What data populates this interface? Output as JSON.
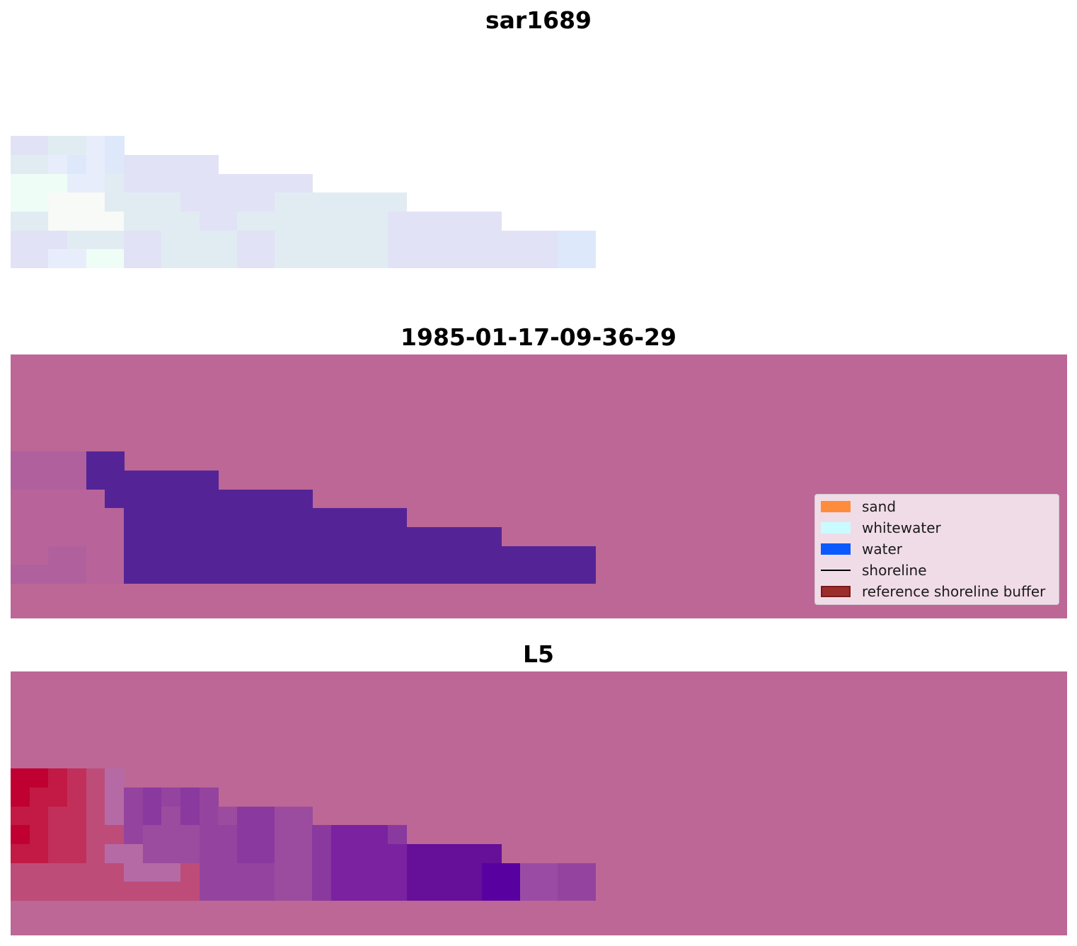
{
  "panels": [
    {
      "title": "sar1689",
      "colormap": "sar",
      "background": "#ffffff",
      "rows": [
        [
          0,
          0,
          0,
          0,
          0,
          0,
          0,
          0,
          0,
          0,
          0,
          0,
          0,
          0,
          0,
          0,
          0,
          0,
          0,
          0,
          0,
          0,
          0,
          0,
          0,
          0,
          0,
          0,
          0,
          0,
          0,
          0
        ],
        [
          0,
          0,
          0,
          0,
          0,
          0,
          0,
          0,
          0,
          0,
          0,
          0,
          0,
          0,
          0,
          0,
          0,
          0,
          0,
          0,
          0,
          0,
          0,
          0,
          0,
          0,
          0,
          0,
          0,
          0,
          0,
          0
        ],
        [
          0,
          0,
          0,
          0,
          0,
          0,
          0,
          0,
          0,
          0,
          0,
          0,
          0,
          0,
          0,
          0,
          0,
          0,
          0,
          0,
          0,
          0,
          0,
          0,
          0,
          0,
          0,
          0,
          0,
          0,
          0,
          0
        ],
        [
          0,
          0,
          0,
          0,
          0,
          0,
          0,
          0,
          0,
          0,
          0,
          0,
          0,
          0,
          0,
          0,
          0,
          0,
          0,
          0,
          0,
          0,
          0,
          0,
          0,
          0,
          0,
          0,
          0,
          0,
          0,
          0
        ],
        [
          0,
          0,
          0,
          0,
          0,
          0,
          0,
          0,
          0,
          0,
          0,
          0,
          0,
          0,
          0,
          0,
          0,
          0,
          0,
          0,
          0,
          0,
          0,
          0,
          0,
          0,
          0,
          0,
          0,
          0,
          0,
          0
        ],
        [
          1,
          1,
          2,
          2,
          3,
          4,
          0,
          0,
          0,
          0,
          0,
          0,
          0,
          0,
          0,
          0,
          0,
          0,
          0,
          0,
          0,
          0,
          0,
          0,
          0,
          0,
          0,
          0,
          0,
          0,
          0,
          0
        ],
        [
          2,
          2,
          3,
          4,
          3,
          4,
          1,
          1,
          1,
          1,
          1,
          0,
          0,
          0,
          0,
          0,
          0,
          0,
          0,
          0,
          0,
          0,
          0,
          0,
          0,
          0,
          0,
          0,
          0,
          0,
          0,
          0
        ],
        [
          5,
          5,
          5,
          3,
          3,
          2,
          1,
          1,
          1,
          1,
          1,
          1,
          1,
          1,
          1,
          1,
          0,
          0,
          0,
          0,
          0,
          0,
          0,
          0,
          0,
          0,
          0,
          0,
          0,
          0,
          0,
          0
        ],
        [
          5,
          5,
          6,
          6,
          6,
          2,
          2,
          2,
          2,
          1,
          1,
          1,
          1,
          1,
          2,
          2,
          2,
          2,
          2,
          2,
          2,
          0,
          0,
          0,
          0,
          0,
          0,
          0,
          0,
          0,
          0,
          0
        ],
        [
          2,
          2,
          6,
          6,
          6,
          6,
          2,
          2,
          2,
          2,
          1,
          1,
          2,
          2,
          2,
          2,
          2,
          2,
          2,
          2,
          1,
          1,
          1,
          1,
          1,
          1,
          0,
          0,
          0,
          0,
          0,
          0
        ],
        [
          1,
          1,
          1,
          2,
          2,
          2,
          1,
          1,
          2,
          2,
          2,
          2,
          1,
          1,
          2,
          2,
          2,
          2,
          2,
          2,
          1,
          1,
          1,
          1,
          1,
          1,
          1,
          1,
          1,
          4,
          4,
          0
        ],
        [
          1,
          1,
          3,
          3,
          5,
          5,
          1,
          1,
          2,
          2,
          2,
          2,
          1,
          1,
          2,
          2,
          2,
          2,
          2,
          2,
          1,
          1,
          1,
          1,
          1,
          1,
          1,
          1,
          1,
          4,
          4,
          0
        ],
        [
          0,
          0,
          0,
          0,
          0,
          0,
          0,
          0,
          0,
          0,
          0,
          0,
          0,
          0,
          0,
          0,
          0,
          0,
          0,
          0,
          0,
          0,
          0,
          0,
          0,
          0,
          0,
          0,
          0,
          0,
          0,
          0
        ],
        [
          0,
          0,
          0,
          0,
          0,
          0,
          0,
          0,
          0,
          0,
          0,
          0,
          0,
          0,
          0,
          0,
          0,
          0,
          0,
          0,
          0,
          0,
          0,
          0,
          0,
          0,
          0,
          0,
          0,
          0,
          0,
          0
        ]
      ],
      "palette": [
        "#ffffff",
        "#e2e2f6",
        "#e1ecf2",
        "#e8edfb",
        "#dde8fa",
        "#eefdf6",
        "#f7faf6"
      ]
    },
    {
      "title": "1985-01-17-09-36-29",
      "colormap": "classification",
      "background": "#bc6796",
      "rows": [
        [
          0,
          0,
          0,
          0,
          0,
          0,
          0,
          0,
          0,
          0,
          0,
          0,
          0,
          0,
          0,
          0,
          0,
          0,
          0,
          0,
          0,
          0,
          0,
          0,
          0,
          0,
          0,
          0,
          0,
          0,
          0,
          0
        ],
        [
          0,
          0,
          0,
          0,
          0,
          0,
          0,
          0,
          0,
          0,
          0,
          0,
          0,
          0,
          0,
          0,
          0,
          0,
          0,
          0,
          0,
          0,
          0,
          0,
          0,
          0,
          0,
          0,
          0,
          0,
          0,
          0
        ],
        [
          0,
          0,
          0,
          0,
          0,
          0,
          0,
          0,
          0,
          0,
          0,
          0,
          0,
          0,
          0,
          0,
          0,
          0,
          0,
          0,
          0,
          0,
          0,
          0,
          0,
          0,
          0,
          0,
          0,
          0,
          0,
          0
        ],
        [
          0,
          0,
          0,
          0,
          0,
          0,
          0,
          0,
          0,
          0,
          0,
          0,
          0,
          0,
          0,
          0,
          0,
          0,
          0,
          0,
          0,
          0,
          0,
          0,
          0,
          0,
          0,
          0,
          0,
          0,
          0,
          0
        ],
        [
          0,
          0,
          0,
          0,
          0,
          0,
          0,
          0,
          0,
          0,
          0,
          0,
          0,
          0,
          0,
          0,
          0,
          0,
          0,
          0,
          0,
          0,
          0,
          0,
          0,
          0,
          0,
          0,
          0,
          0,
          0,
          0
        ],
        [
          2,
          2,
          2,
          2,
          1,
          1,
          0,
          0,
          0,
          0,
          0,
          0,
          0,
          0,
          0,
          0,
          0,
          0,
          0,
          0,
          0,
          0,
          0,
          0,
          0,
          0,
          0,
          0,
          0,
          0,
          0,
          0
        ],
        [
          2,
          2,
          2,
          2,
          1,
          1,
          1,
          1,
          1,
          1,
          1,
          0,
          0,
          0,
          0,
          0,
          0,
          0,
          0,
          0,
          0,
          0,
          0,
          0,
          0,
          0,
          0,
          0,
          0,
          0,
          0,
          0
        ],
        [
          3,
          3,
          3,
          3,
          3,
          1,
          1,
          1,
          1,
          1,
          1,
          1,
          1,
          1,
          1,
          1,
          0,
          0,
          0,
          0,
          0,
          0,
          0,
          0,
          0,
          0,
          0,
          0,
          0,
          0,
          0,
          0
        ],
        [
          3,
          3,
          3,
          3,
          3,
          3,
          1,
          1,
          1,
          1,
          1,
          1,
          1,
          1,
          1,
          1,
          1,
          1,
          1,
          1,
          1,
          0,
          0,
          0,
          0,
          0,
          0,
          0,
          0,
          0,
          0,
          0
        ],
        [
          3,
          3,
          3,
          3,
          3,
          3,
          1,
          1,
          1,
          1,
          1,
          1,
          1,
          1,
          1,
          1,
          1,
          1,
          1,
          1,
          1,
          1,
          1,
          1,
          1,
          1,
          0,
          0,
          0,
          0,
          0,
          0
        ],
        [
          3,
          3,
          2,
          2,
          3,
          3,
          1,
          1,
          1,
          1,
          1,
          1,
          1,
          1,
          1,
          1,
          1,
          1,
          1,
          1,
          1,
          1,
          1,
          1,
          1,
          1,
          1,
          1,
          1,
          1,
          1,
          0
        ],
        [
          2,
          2,
          2,
          2,
          3,
          3,
          1,
          1,
          1,
          1,
          1,
          1,
          1,
          1,
          1,
          1,
          1,
          1,
          1,
          1,
          1,
          1,
          1,
          1,
          1,
          1,
          1,
          1,
          1,
          1,
          1,
          0
        ],
        [
          0,
          0,
          0,
          0,
          0,
          0,
          0,
          0,
          0,
          0,
          0,
          0,
          0,
          0,
          0,
          0,
          0,
          0,
          0,
          0,
          0,
          0,
          0,
          0,
          0,
          0,
          0,
          0,
          0,
          0,
          0,
          0
        ],
        [
          0,
          0,
          0,
          0,
          0,
          0,
          0,
          0,
          0,
          0,
          0,
          0,
          0,
          0,
          0,
          0,
          0,
          0,
          0,
          0,
          0,
          0,
          0,
          0,
          0,
          0,
          0,
          0,
          0,
          0,
          0,
          0
        ]
      ],
      "palette": [
        "#bc6796",
        "#542497",
        "#b0619d",
        "#b8649a"
      ]
    },
    {
      "title": "L5",
      "colormap": "index",
      "background": "#bc6796",
      "rows": [
        [
          0,
          0,
          0,
          0,
          0,
          0,
          0,
          0,
          0,
          0,
          0,
          0,
          0,
          0,
          0,
          0,
          0,
          0,
          0,
          0,
          0,
          0,
          0,
          0,
          0,
          0,
          0,
          0,
          0,
          0,
          0,
          0
        ],
        [
          0,
          0,
          0,
          0,
          0,
          0,
          0,
          0,
          0,
          0,
          0,
          0,
          0,
          0,
          0,
          0,
          0,
          0,
          0,
          0,
          0,
          0,
          0,
          0,
          0,
          0,
          0,
          0,
          0,
          0,
          0,
          0
        ],
        [
          0,
          0,
          0,
          0,
          0,
          0,
          0,
          0,
          0,
          0,
          0,
          0,
          0,
          0,
          0,
          0,
          0,
          0,
          0,
          0,
          0,
          0,
          0,
          0,
          0,
          0,
          0,
          0,
          0,
          0,
          0,
          0
        ],
        [
          0,
          0,
          0,
          0,
          0,
          0,
          0,
          0,
          0,
          0,
          0,
          0,
          0,
          0,
          0,
          0,
          0,
          0,
          0,
          0,
          0,
          0,
          0,
          0,
          0,
          0,
          0,
          0,
          0,
          0,
          0,
          0
        ],
        [
          0,
          0,
          0,
          0,
          0,
          0,
          0,
          0,
          0,
          0,
          0,
          0,
          0,
          0,
          0,
          0,
          0,
          0,
          0,
          0,
          0,
          0,
          0,
          0,
          0,
          0,
          0,
          0,
          0,
          0,
          0,
          0
        ],
        [
          1,
          1,
          2,
          3,
          4,
          5,
          0,
          0,
          0,
          0,
          0,
          0,
          0,
          0,
          0,
          0,
          0,
          0,
          0,
          0,
          0,
          0,
          0,
          0,
          0,
          0,
          0,
          0,
          0,
          0,
          0,
          0
        ],
        [
          1,
          2,
          2,
          3,
          4,
          5,
          6,
          7,
          6,
          7,
          6,
          0,
          0,
          0,
          0,
          0,
          0,
          0,
          0,
          0,
          0,
          0,
          0,
          0,
          0,
          0,
          0,
          0,
          0,
          0,
          0,
          0
        ],
        [
          2,
          2,
          3,
          3,
          4,
          5,
          6,
          7,
          8,
          7,
          6,
          8,
          7,
          7,
          8,
          8,
          0,
          0,
          0,
          0,
          0,
          0,
          0,
          0,
          0,
          0,
          0,
          0,
          0,
          0,
          0,
          0
        ],
        [
          1,
          2,
          3,
          3,
          4,
          4,
          6,
          8,
          8,
          8,
          6,
          6,
          7,
          7,
          8,
          8,
          7,
          9,
          9,
          9,
          7,
          0,
          0,
          0,
          0,
          0,
          0,
          0,
          0,
          0,
          0,
          0
        ],
        [
          2,
          2,
          3,
          3,
          4,
          5,
          5,
          8,
          8,
          8,
          6,
          6,
          7,
          7,
          8,
          8,
          7,
          9,
          9,
          9,
          9,
          10,
          10,
          10,
          10,
          10,
          0,
          0,
          0,
          0,
          0,
          0
        ],
        [
          4,
          4,
          4,
          4,
          4,
          4,
          5,
          5,
          5,
          4,
          6,
          6,
          6,
          6,
          8,
          8,
          7,
          9,
          9,
          9,
          9,
          10,
          10,
          10,
          10,
          11,
          11,
          12,
          12,
          6,
          6,
          0
        ],
        [
          4,
          4,
          4,
          4,
          4,
          4,
          4,
          4,
          4,
          4,
          6,
          6,
          6,
          6,
          8,
          8,
          7,
          9,
          9,
          9,
          9,
          10,
          10,
          10,
          10,
          11,
          11,
          12,
          12,
          6,
          6,
          0
        ],
        [
          0,
          0,
          0,
          0,
          0,
          0,
          0,
          0,
          0,
          0,
          0,
          0,
          0,
          0,
          0,
          0,
          0,
          0,
          0,
          0,
          0,
          0,
          0,
          0,
          0,
          0,
          0,
          0,
          0,
          0,
          0,
          0
        ],
        [
          0,
          0,
          0,
          0,
          0,
          0,
          0,
          0,
          0,
          0,
          0,
          0,
          0,
          0,
          0,
          0,
          0,
          0,
          0,
          0,
          0,
          0,
          0,
          0,
          0,
          0,
          0,
          0,
          0,
          0,
          0,
          0
        ]
      ],
      "palette": [
        "#bc6796",
        "#c00030",
        "#c21a45",
        "#c1305a",
        "#bd4d78",
        "#b56aa5",
        "#94449e",
        "#8a399f",
        "#9c4c9e",
        "#7a22a0",
        "#660f98",
        "#5800a0",
        "#9a4ca4"
      ]
    }
  ],
  "legend": {
    "items": [
      {
        "label": "sand",
        "swatch": "#ff8c3c",
        "type": "patch"
      },
      {
        "label": "whitewater",
        "swatch": "#c9fbff",
        "type": "patch"
      },
      {
        "label": "water",
        "swatch": "#0a5aff",
        "type": "patch"
      },
      {
        "label": "shoreline",
        "swatch": "#000000",
        "type": "line"
      },
      {
        "label": "reference shoreline buffer",
        "swatch": "#9b2d2d",
        "type": "patch"
      }
    ]
  }
}
